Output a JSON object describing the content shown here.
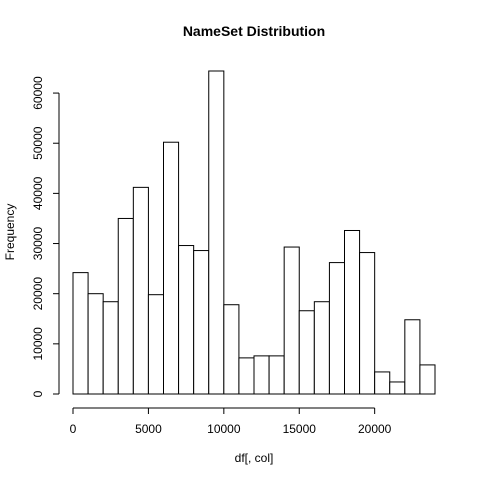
{
  "chart_data": {
    "type": "bar",
    "title": "NameSet  Distribution",
    "xlabel": "df[, col]",
    "ylabel": "Frequency",
    "bin_width": 1000,
    "bins_start": 0,
    "values": [
      24200,
      20000,
      18400,
      35000,
      41200,
      19800,
      50200,
      29600,
      28600,
      64400,
      17800,
      7200,
      7600,
      7600,
      29300,
      16600,
      18400,
      26200,
      32600,
      28200,
      4400,
      2400,
      14800,
      5800
    ],
    "xlim": [
      0,
      24000
    ],
    "ylim": [
      0,
      64400
    ],
    "x_ticks": [
      0,
      5000,
      10000,
      15000,
      20000
    ],
    "x_tick_labels": [
      "0",
      "5000",
      "10000",
      "15000",
      "20000"
    ],
    "y_ticks": [
      0,
      10000,
      20000,
      30000,
      40000,
      50000,
      60000
    ],
    "y_tick_labels": [
      "0",
      "10000",
      "20000",
      "30000",
      "40000",
      "50000",
      "60000"
    ],
    "grid": false,
    "legend": "none",
    "bar_fill": "#ffffff",
    "bar_stroke": "#000000"
  }
}
